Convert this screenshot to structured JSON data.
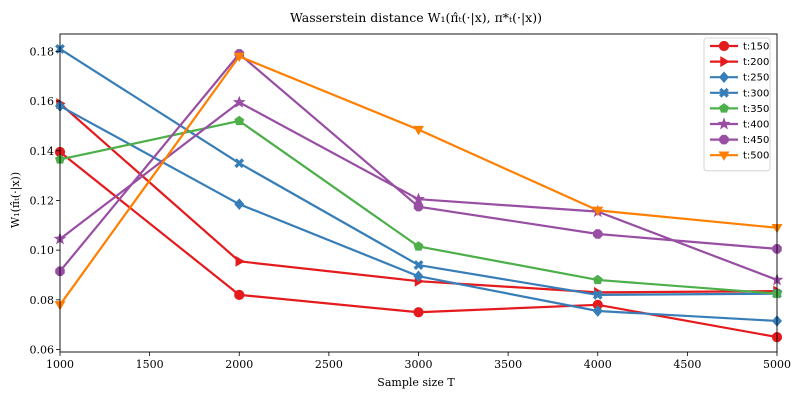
{
  "chart_data": {
    "type": "line",
    "title": "Wasserstein distance W₁(π̂ₜ(·|x), π*ₜ(·|x))",
    "xlabel": "Sample size T",
    "ylabel": "W₁(π̂ₜ(·|x))",
    "x": [
      1000,
      2000,
      3000,
      4000,
      5000
    ],
    "xlim": [
      1000,
      5000
    ],
    "ylim": [
      0.059,
      0.187
    ],
    "xticks": [
      1000,
      1500,
      2000,
      2500,
      3000,
      3500,
      4000,
      4500,
      5000
    ],
    "yticks": [
      0.06,
      0.08,
      0.1,
      0.12,
      0.14,
      0.16,
      0.18
    ],
    "xtick_labels": [
      "1000",
      "1500",
      "2000",
      "2500",
      "3000",
      "3500",
      "4000",
      "4500",
      "5000"
    ],
    "ytick_labels": [
      "0.06",
      "0.08",
      "0.10",
      "0.12",
      "0.14",
      "0.16",
      "0.18"
    ],
    "grid": false,
    "legend_position": "top-right",
    "series": [
      {
        "name": "t:150",
        "color": "#e41a1c",
        "marker": "circle",
        "values": [
          0.1395,
          0.082,
          0.075,
          0.078,
          0.065
        ]
      },
      {
        "name": "t:200",
        "color": "#e41a1c",
        "marker": "triangle-right",
        "values": [
          0.159,
          0.0955,
          0.0875,
          0.083,
          0.0835
        ]
      },
      {
        "name": "t:250",
        "color": "#377eb8",
        "marker": "diamond",
        "values": [
          0.158,
          0.1185,
          0.0895,
          0.0755,
          0.0715
        ]
      },
      {
        "name": "t:300",
        "color": "#377eb8",
        "marker": "x",
        "values": [
          0.181,
          0.135,
          0.094,
          0.082,
          0.0825
        ]
      },
      {
        "name": "t:350",
        "color": "#4daf4a",
        "marker": "pentagon",
        "values": [
          0.1365,
          0.152,
          0.1015,
          0.088,
          0.0825
        ]
      },
      {
        "name": "t:400",
        "color": "#984ea3",
        "marker": "star",
        "values": [
          0.1045,
          0.1595,
          0.1205,
          0.1155,
          0.088
        ]
      },
      {
        "name": "t:450",
        "color": "#984ea3",
        "marker": "octagon",
        "values": [
          0.0915,
          0.179,
          0.1175,
          0.1065,
          0.1005
        ]
      },
      {
        "name": "t:500",
        "color": "#ff7f00",
        "marker": "triangle-down",
        "values": [
          0.078,
          0.178,
          0.1485,
          0.116,
          0.109
        ]
      }
    ]
  }
}
